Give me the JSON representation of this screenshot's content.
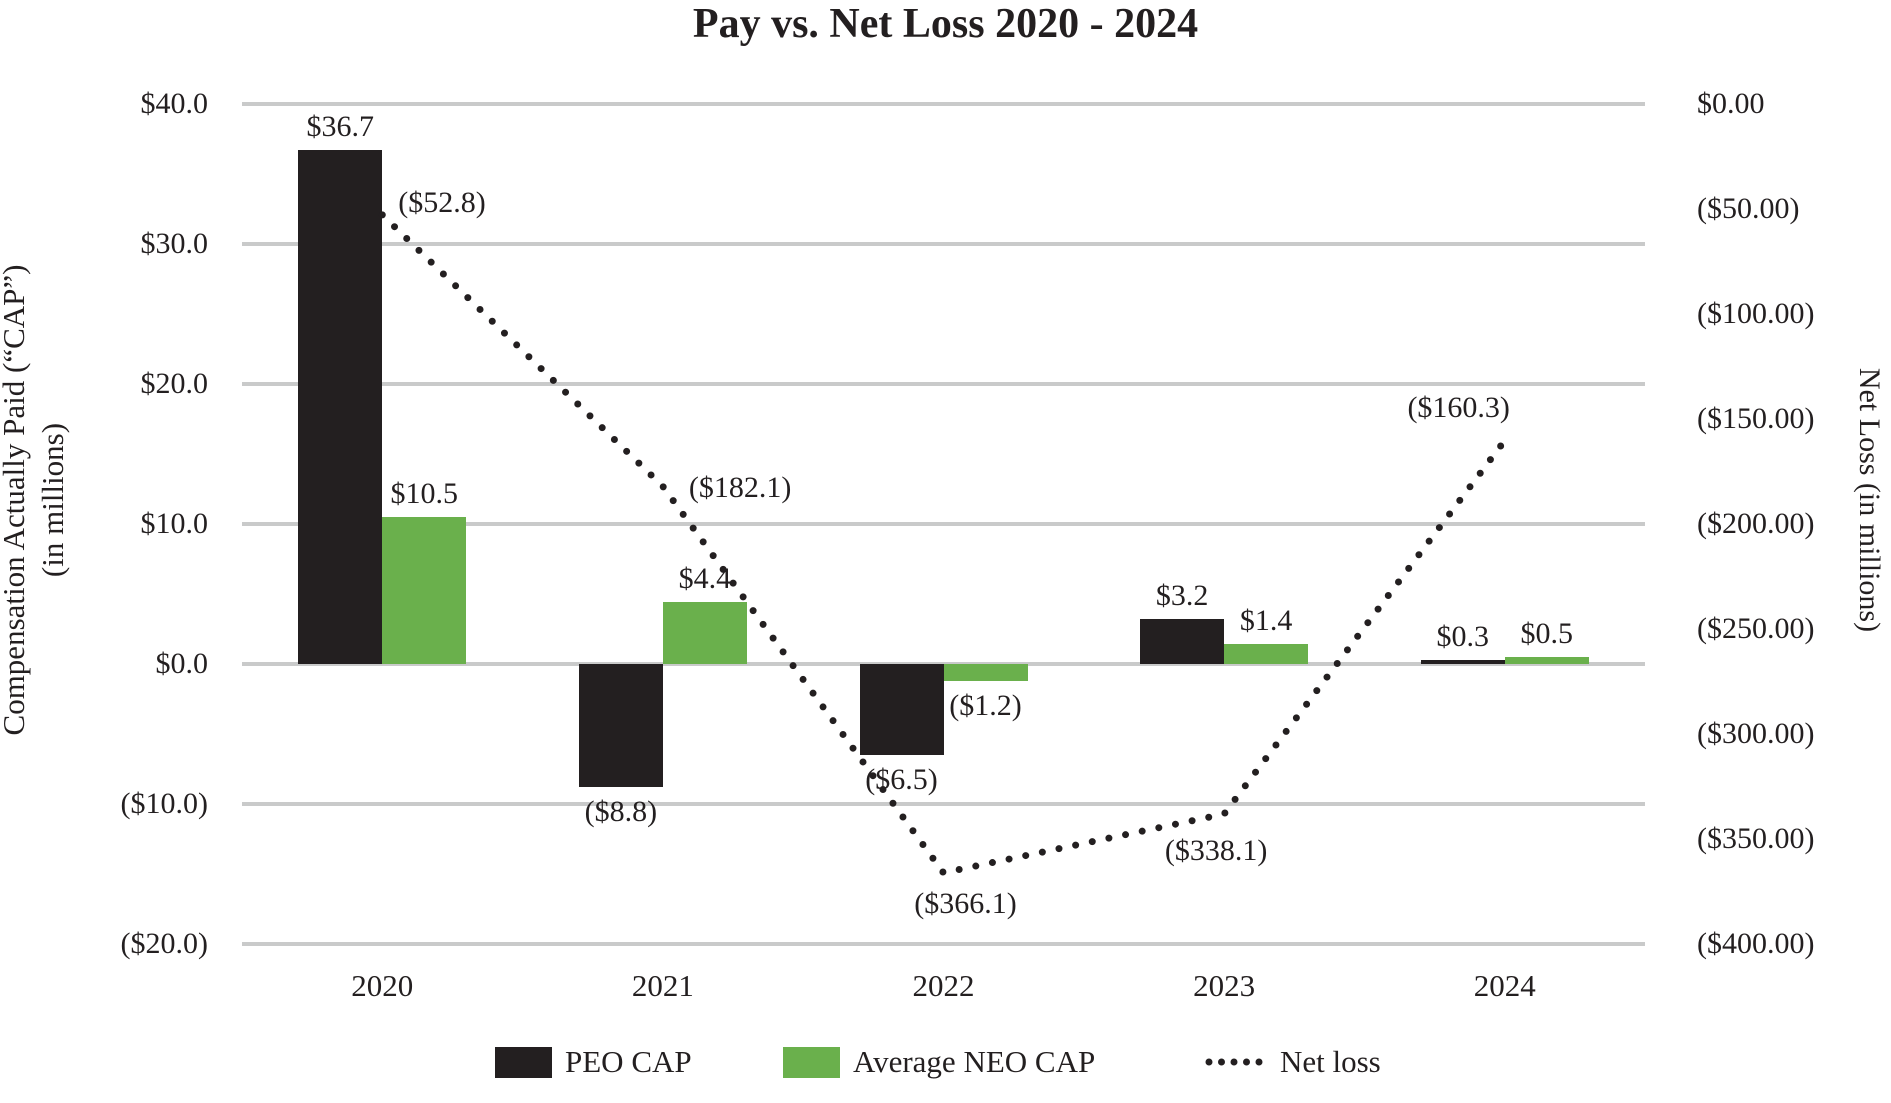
{
  "title": "Pay vs. Net Loss 2020 - 2024",
  "left_axis": {
    "title_line1": "Compensation Actually Paid (“CAP”)",
    "title_line2": "(in millions)",
    "tick_labels": [
      "$40.0",
      "$30.0",
      "$20.0",
      "$10.0",
      "$0.0",
      "($10.0)",
      "($20.0)"
    ],
    "tick_values": [
      40,
      30,
      20,
      10,
      0,
      -10,
      -20
    ],
    "max": 40,
    "min": -20
  },
  "right_axis": {
    "title": "Net Loss (in millions)",
    "tick_labels": [
      "$0.00",
      "($50.00)",
      "($100.00)",
      "($150.00)",
      "($200.00)",
      "($250.00)",
      "($300.00)",
      "($350.00)",
      "($400.00)"
    ],
    "tick_values": [
      0,
      -50,
      -100,
      -150,
      -200,
      -250,
      -300,
      -350,
      -400
    ],
    "max": 0,
    "min": -400
  },
  "chart_data": {
    "type": "bar",
    "subtype": "grouped-bars-with-dotted-line",
    "categories": [
      "2020",
      "2021",
      "2022",
      "2023",
      "2024"
    ],
    "series": [
      {
        "name": "PEO CAP",
        "type": "bar",
        "axis": "left",
        "color": "#231f20",
        "values": [
          36.7,
          -8.8,
          -6.5,
          3.2,
          0.3
        ],
        "labels": [
          "$36.7",
          "($8.8)",
          "($6.5)",
          "$3.2",
          "$0.3"
        ]
      },
      {
        "name": "Average NEO CAP",
        "type": "bar",
        "axis": "left",
        "color": "#6ab04c",
        "values": [
          10.5,
          4.4,
          -1.2,
          1.4,
          0.5
        ],
        "labels": [
          "$10.5",
          "$4.4",
          "($1.2)",
          "$1.4",
          "$0.5"
        ]
      },
      {
        "name": "Net loss",
        "type": "dotted-line",
        "axis": "right",
        "color": "#231f20",
        "values": [
          -52.8,
          -182.1,
          -366.1,
          -338.1,
          -160.3
        ],
        "labels": [
          "($52.8)",
          "($182.1)",
          "($366.1)",
          "($338.1)",
          "($160.3)"
        ]
      }
    ],
    "ylabel_left": "Compensation Actually Paid (“CAP”) (in millions)",
    "ylabel_right": "Net Loss (in millions)",
    "ylim_left": [
      -20,
      40
    ],
    "ylim_right": [
      -400,
      0
    ],
    "grid": true,
    "legend_position": "bottom"
  },
  "legend": {
    "items": [
      {
        "label": "PEO CAP",
        "swatch": "black-square"
      },
      {
        "label": "Average NEO CAP",
        "swatch": "green-square"
      },
      {
        "label": "Net loss",
        "swatch": "dotted-line"
      }
    ]
  },
  "colors": {
    "peo": "#231f20",
    "neo": "#6ab04c",
    "gridline": "#c9caca",
    "text": "#231f20",
    "background": "#ffffff"
  }
}
